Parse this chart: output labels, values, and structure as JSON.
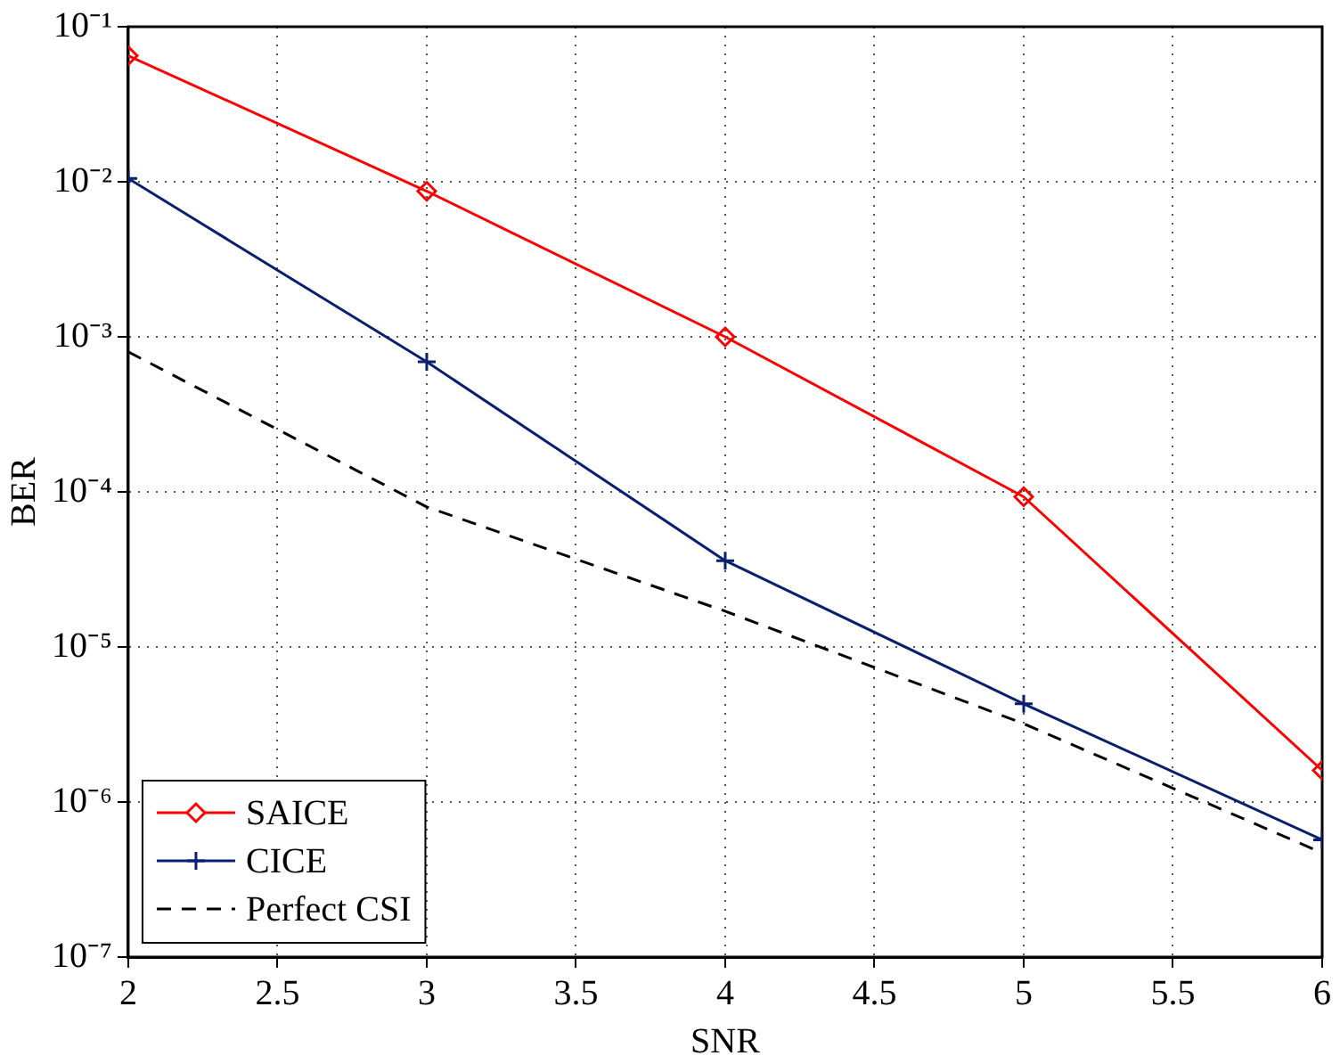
{
  "chart_data": {
    "type": "line",
    "xlabel": "SNR",
    "ylabel": "BER",
    "x": [
      2,
      3,
      4,
      5,
      6
    ],
    "series": [
      {
        "name": "SAICE",
        "color": "#ff0000",
        "marker": "diamond",
        "line_style": "solid",
        "values": [
          0.065,
          0.0087,
          0.001,
          9.3e-05,
          1.6e-06
        ]
      },
      {
        "name": "CICE",
        "color": "#0a1f6e",
        "marker": "cross",
        "line_style": "solid",
        "values": [
          0.0105,
          0.00069,
          3.6e-05,
          4.3e-06,
          5.7e-07
        ]
      },
      {
        "name": "Perfect CSI",
        "color": "#000000",
        "marker": "none",
        "line_style": "dashed",
        "values": [
          0.0008,
          8e-05,
          1.7e-05,
          3.2e-06,
          4.7e-07
        ]
      }
    ],
    "log": "y",
    "xlim": [
      2,
      6
    ],
    "xticks": [
      2,
      2.5,
      3,
      3.5,
      4,
      4.5,
      5,
      5.5,
      6
    ],
    "ylim": [
      1e-07,
      0.1
    ],
    "yticks": [
      {
        "value": 1e-07,
        "label": "10⁻⁷"
      },
      {
        "value": 1e-06,
        "label": "10⁻⁶"
      },
      {
        "value": 1e-05,
        "label": "10⁻⁵"
      },
      {
        "value": 0.0001,
        "label": "10⁻⁴"
      },
      {
        "value": 0.001,
        "label": "10⁻³"
      },
      {
        "value": 0.01,
        "label": "10⁻²"
      },
      {
        "value": 0.1,
        "label": "10⁻¹"
      }
    ],
    "grid": true,
    "legend": "bottom left"
  }
}
